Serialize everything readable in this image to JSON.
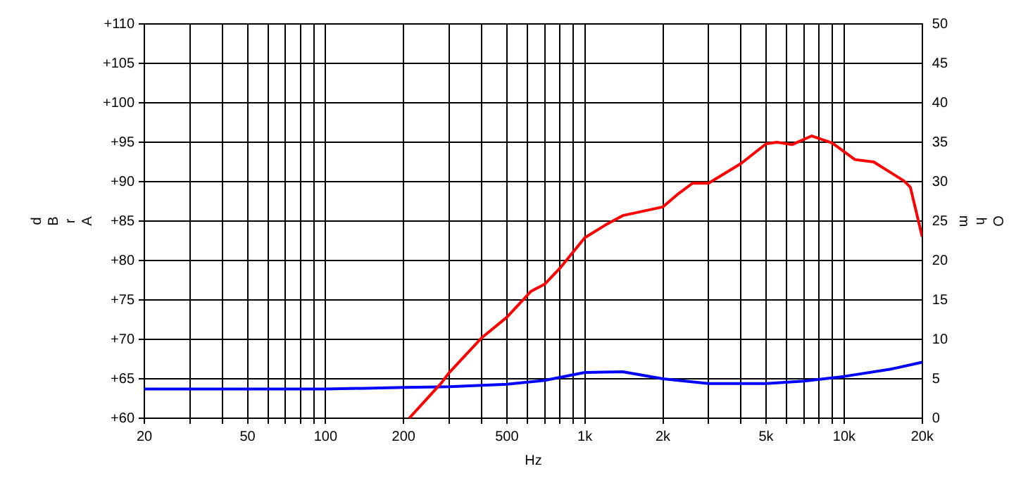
{
  "chart_data": {
    "type": "line",
    "xlabel": "Hz",
    "ylabel": "dBrA",
    "y2label": "Ohm",
    "log": "x",
    "grid": true,
    "legend": false,
    "marker": "none",
    "line_style": "solid",
    "xlim": [
      20,
      20000
    ],
    "xticks": [
      20,
      {
        "value": 30,
        "label": null
      },
      {
        "value": 40,
        "label": null
      },
      50,
      {
        "value": 60,
        "label": null
      },
      {
        "value": 70,
        "label": null
      },
      {
        "value": 80,
        "label": null
      },
      {
        "value": 90,
        "label": null
      },
      100,
      200,
      {
        "value": 300,
        "label": null
      },
      {
        "value": 400,
        "label": null
      },
      500,
      {
        "value": 600,
        "label": null
      },
      {
        "value": 700,
        "label": null
      },
      {
        "value": 800,
        "label": null
      },
      {
        "value": 900,
        "label": null
      },
      {
        "value": 1000,
        "label": "1k"
      },
      {
        "value": 2000,
        "label": "2k"
      },
      {
        "value": 3000,
        "label": null
      },
      {
        "value": 4000,
        "label": null
      },
      {
        "value": 5000,
        "label": "5k"
      },
      {
        "value": 6000,
        "label": null
      },
      {
        "value": 7000,
        "label": null
      },
      {
        "value": 8000,
        "label": null
      },
      {
        "value": 9000,
        "label": null
      },
      {
        "value": 10000,
        "label": "10k"
      },
      {
        "value": 20000,
        "label": "20k"
      }
    ],
    "ylim": [
      60,
      110
    ],
    "yticks": [
      {
        "value": 60,
        "label": "+60"
      },
      {
        "value": 65,
        "label": "+65"
      },
      {
        "value": 70,
        "label": "+70"
      },
      {
        "value": 75,
        "label": "+75"
      },
      {
        "value": 80,
        "label": "+80"
      },
      {
        "value": 85,
        "label": "+85"
      },
      {
        "value": 90,
        "label": "+90"
      },
      {
        "value": 95,
        "label": "+95"
      },
      {
        "value": 100,
        "label": "+100"
      },
      {
        "value": 105,
        "label": "+105"
      },
      {
        "value": 110,
        "label": "+110"
      }
    ],
    "y2lim": [
      0,
      50
    ],
    "y2ticks": [
      0,
      5,
      10,
      15,
      20,
      25,
      30,
      35,
      40,
      45,
      50
    ],
    "series": [
      {
        "color": "#ff0000",
        "x": [
          210,
          280,
          300,
          400,
          500,
          620,
          700,
          800,
          1000,
          1200,
          1400,
          2000,
          2300,
          2600,
          3000,
          4000,
          5000,
          5500,
          6300,
          7500,
          9000,
          11000,
          13000,
          17000,
          18000,
          20000
        ],
        "values": [
          60,
          64.5,
          65.8,
          70.2,
          72.8,
          76.1,
          77,
          79,
          82.9,
          84.5,
          85.7,
          86.8,
          88.5,
          89.8,
          89.8,
          92.3,
          94.8,
          95,
          94.7,
          95.8,
          94.9,
          92.8,
          92.5,
          90.1,
          89.3,
          83
        ]
      },
      {
        "color": "#0000ff",
        "axis": "y2",
        "x": [
          20,
          100,
          200,
          300,
          500,
          700,
          1000,
          1400,
          2000,
          3000,
          5000,
          7000,
          10000,
          15000,
          20000
        ],
        "values": [
          3.7,
          3.7,
          3.9,
          4,
          4.3,
          4.8,
          5.8,
          5.9,
          5,
          4.4,
          4.4,
          4.7,
          5.3,
          6.2,
          7.1
        ]
      }
    ]
  }
}
